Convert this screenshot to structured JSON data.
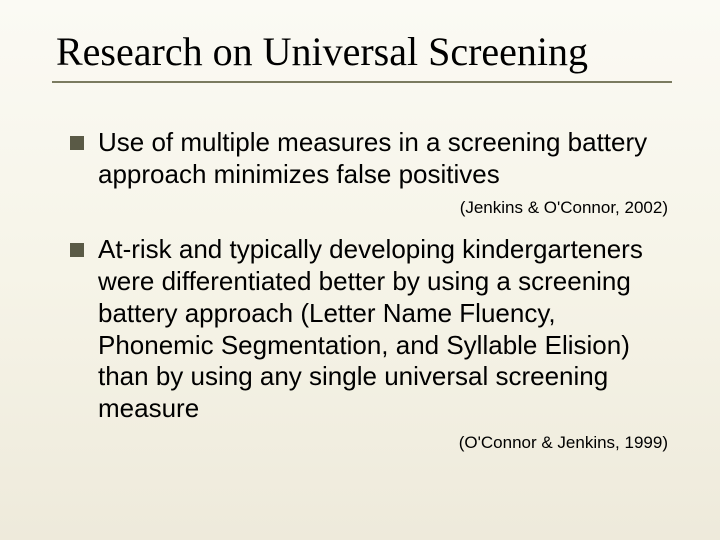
{
  "slide": {
    "title": "Research on Universal Screening",
    "background_gradient": [
      "#fbfaf4",
      "#f6f4e8",
      "#eeeadb"
    ],
    "title_font_family": "Times New Roman",
    "title_fontsize": 40,
    "title_color": "#000000",
    "rule_color": "#7b7b60",
    "bullet_marker_color": "#5a5a46",
    "bullet_marker_size": 14,
    "body_fontsize": 26,
    "citation_fontsize": 17,
    "bullets": [
      {
        "text": "Use of multiple measures in a screening battery approach minimizes false positives",
        "citation": "(Jenkins & O'Connor, 2002)"
      },
      {
        "text": "At-risk and typically developing kindergarteners were differentiated better by using a screening battery approach (Letter Name Fluency, Phonemic Segmentation, and Syllable Elision) than by using any single universal screening measure",
        "citation": "(O'Connor & Jenkins, 1999)"
      }
    ]
  }
}
